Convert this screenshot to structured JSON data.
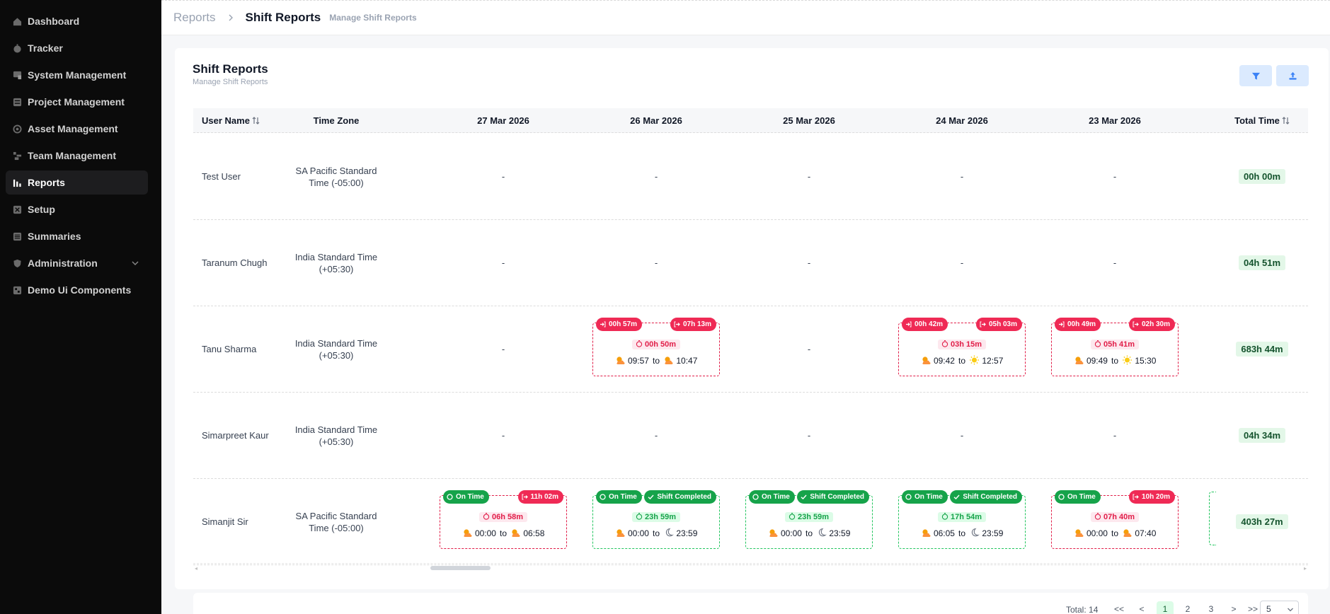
{
  "sidebar": {
    "items": [
      {
        "label": "Dashboard",
        "icon": "home-icon"
      },
      {
        "label": "Tracker",
        "icon": "stopwatch-icon"
      },
      {
        "label": "System Management",
        "icon": "system-icon"
      },
      {
        "label": "Project Management",
        "icon": "project-icon"
      },
      {
        "label": "Asset Management",
        "icon": "asset-icon"
      },
      {
        "label": "Team Management",
        "icon": "team-icon"
      },
      {
        "label": "Reports",
        "icon": "bar-chart-icon",
        "active": true
      },
      {
        "label": "Setup",
        "icon": "setup-icon"
      },
      {
        "label": "Summaries",
        "icon": "summaries-icon"
      },
      {
        "label": "Administration",
        "icon": "shield-icon",
        "has_chevron": true
      },
      {
        "label": "Demo Ui Components",
        "icon": "components-icon"
      }
    ]
  },
  "header": {
    "breadcrumb_parent": "Reports",
    "breadcrumb_current": "Shift Reports",
    "breadcrumb_subtitle": "Manage Shift Reports"
  },
  "card": {
    "title": "Shift Reports",
    "subtitle": "Manage Shift Reports",
    "filter_icon": "filter-icon",
    "export_icon": "upload-icon"
  },
  "table": {
    "headers": {
      "user": "User Name",
      "tz": "Time Zone",
      "d1": "27 Mar 2026",
      "d2": "26 Mar 2026",
      "d3": "25 Mar 2026",
      "d4": "24 Mar 2026",
      "d5": "23 Mar 2026",
      "total": "Total Time"
    },
    "empty": "-",
    "rows": [
      {
        "user": "Test User",
        "tz_line1": "SA Pacific Standard",
        "tz_line2": "Time (-05:00)",
        "total": "00h 00m"
      },
      {
        "user": "Taranum Chugh",
        "tz_line1": "India Standard Time",
        "tz_line2": "(+05:30)",
        "total": "04h 51m"
      },
      {
        "user": "Tanu Sharma",
        "tz_line1": "India Standard Time",
        "tz_line2": "(+05:30)",
        "total": "683h 44m",
        "shifts": {
          "d2": {
            "left": "00h 57m",
            "right": "07h 13m",
            "duration": "00h 50m",
            "start": "09:57",
            "end": "10:47"
          },
          "d4": {
            "left": "00h 42m",
            "right": "05h 03m",
            "duration": "03h 15m",
            "start": "09:42",
            "end": "12:57"
          },
          "d5": {
            "left": "00h 49m",
            "right": "02h 30m",
            "duration": "05h 41m",
            "start": "09:49",
            "end": "15:30"
          }
        }
      },
      {
        "user": "Simarpreet Kaur",
        "tz_line1": "India Standard Time",
        "tz_line2": "(+05:30)",
        "total": "04h 34m"
      },
      {
        "user": "Simanjit Sir",
        "tz_line1": "SA Pacific Standard",
        "tz_line2": "Time (-05:00)",
        "total": "403h 27m",
        "shifts": {
          "d1": {
            "left": "On Time",
            "right": "11h 02m",
            "duration": "06h 58m",
            "start": "00:00",
            "end": "06:58"
          },
          "d2": {
            "left": "On Time",
            "right": "Shift Completed",
            "duration": "23h 59m",
            "start": "00:00",
            "end": "23:59"
          },
          "d3": {
            "left": "On Time",
            "right": "Shift Completed",
            "duration": "23h 59m",
            "start": "00:00",
            "end": "23:59"
          },
          "d4": {
            "left": "On Time",
            "right": "Shift Completed",
            "duration": "17h 54m",
            "start": "06:05",
            "end": "23:59"
          },
          "d5": {
            "left": "On Time",
            "right": "10h 20m",
            "duration": "07h 40m",
            "start": "00:00",
            "end": "07:40"
          }
        }
      }
    ],
    "to_word": "to"
  },
  "pagination": {
    "total": "Total: 14",
    "first": "<<",
    "prev": "<",
    "pages": [
      "1",
      "2",
      "3"
    ],
    "next": ">",
    "last": ">>",
    "page_size": "5"
  },
  "colors": {
    "accent_red": "#ef2a55",
    "accent_green": "#16a34a",
    "sidebar_bg": "#0b0b0b"
  }
}
